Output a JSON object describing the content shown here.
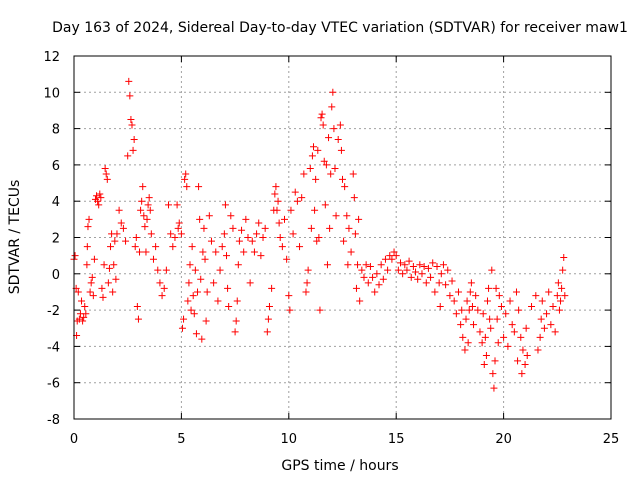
{
  "chart_data": {
    "type": "scatter",
    "title": "Day 163 of 2024, Sidereal Day-to-day VTEC variation (SDTVAR) for receiver maw1",
    "xlabel": "GPS time / hours",
    "ylabel": "SDTVAR / TECUs",
    "xlim": [
      0,
      25
    ],
    "ylim": [
      -8,
      12
    ],
    "xticks": [
      0,
      5,
      10,
      15,
      20,
      25
    ],
    "yticks": [
      -8,
      -6,
      -4,
      -2,
      0,
      2,
      4,
      6,
      8,
      10,
      12
    ],
    "grid": true,
    "marker": "+",
    "marker_color": "#ff0000",
    "series": [
      {
        "name": "maw1",
        "points": [
          [
            0.0,
            0.8
          ],
          [
            0.05,
            1.0
          ],
          [
            0.1,
            -0.8
          ],
          [
            0.12,
            -3.4
          ],
          [
            0.15,
            -2.6
          ],
          [
            0.2,
            -1.0
          ],
          [
            0.25,
            -2.5
          ],
          [
            0.3,
            -2.2
          ],
          [
            0.35,
            -1.5
          ],
          [
            0.4,
            -2.6
          ],
          [
            0.45,
            -2.4
          ],
          [
            0.5,
            -1.8
          ],
          [
            0.55,
            -2.2
          ],
          [
            0.6,
            0.5
          ],
          [
            0.62,
            1.5
          ],
          [
            0.65,
            2.6
          ],
          [
            0.7,
            3.0
          ],
          [
            0.75,
            -1.0
          ],
          [
            0.8,
            -0.5
          ],
          [
            0.85,
            -0.2
          ],
          [
            0.9,
            -1.2
          ],
          [
            0.95,
            0.8
          ],
          [
            1.0,
            4.1
          ],
          [
            1.05,
            4.3
          ],
          [
            1.1,
            4.0
          ],
          [
            1.15,
            3.8
          ],
          [
            1.2,
            4.4
          ],
          [
            1.25,
            4.2
          ],
          [
            1.3,
            -0.8
          ],
          [
            1.35,
            -1.3
          ],
          [
            1.4,
            0.5
          ],
          [
            1.45,
            5.8
          ],
          [
            1.5,
            5.5
          ],
          [
            1.55,
            5.2
          ],
          [
            1.6,
            -0.5
          ],
          [
            1.65,
            0.3
          ],
          [
            1.7,
            1.5
          ],
          [
            1.75,
            2.2
          ],
          [
            1.8,
            -1.0
          ],
          [
            1.85,
            0.5
          ],
          [
            1.9,
            1.8
          ],
          [
            1.95,
            -0.3
          ],
          [
            2.0,
            2.2
          ],
          [
            2.1,
            3.5
          ],
          [
            2.2,
            2.8
          ],
          [
            2.3,
            2.5
          ],
          [
            2.4,
            1.8
          ],
          [
            2.5,
            6.5
          ],
          [
            2.55,
            10.6
          ],
          [
            2.6,
            9.8
          ],
          [
            2.65,
            8.5
          ],
          [
            2.7,
            8.2
          ],
          [
            2.75,
            6.8
          ],
          [
            2.8,
            7.4
          ],
          [
            2.85,
            1.5
          ],
          [
            2.9,
            2.0
          ],
          [
            2.95,
            -1.8
          ],
          [
            3.0,
            -2.5
          ],
          [
            3.05,
            1.2
          ],
          [
            3.1,
            3.5
          ],
          [
            3.15,
            4.0
          ],
          [
            3.2,
            4.8
          ],
          [
            3.25,
            3.2
          ],
          [
            3.3,
            2.6
          ],
          [
            3.35,
            1.2
          ],
          [
            3.4,
            3.0
          ],
          [
            3.45,
            3.8
          ],
          [
            3.5,
            4.2
          ],
          [
            3.55,
            3.5
          ],
          [
            3.6,
            2.2
          ],
          [
            3.7,
            0.8
          ],
          [
            3.8,
            1.5
          ],
          [
            3.9,
            0.2
          ],
          [
            4.0,
            -0.5
          ],
          [
            4.1,
            -1.2
          ],
          [
            4.2,
            -0.8
          ],
          [
            4.3,
            0.2
          ],
          [
            4.4,
            3.8
          ],
          [
            4.5,
            2.2
          ],
          [
            4.6,
            1.5
          ],
          [
            4.7,
            2.0
          ],
          [
            4.8,
            3.8
          ],
          [
            4.85,
            2.5
          ],
          [
            4.9,
            2.8
          ],
          [
            5.0,
            2.2
          ],
          [
            5.05,
            -3.0
          ],
          [
            5.1,
            -2.5
          ],
          [
            5.15,
            5.2
          ],
          [
            5.2,
            5.5
          ],
          [
            5.25,
            4.8
          ],
          [
            5.3,
            -1.5
          ],
          [
            5.35,
            -0.5
          ],
          [
            5.4,
            0.5
          ],
          [
            5.45,
            -2.0
          ],
          [
            5.5,
            1.5
          ],
          [
            5.55,
            -1.2
          ],
          [
            5.6,
            -2.2
          ],
          [
            5.65,
            0.2
          ],
          [
            5.7,
            -3.3
          ],
          [
            5.75,
            -1.0
          ],
          [
            5.8,
            4.8
          ],
          [
            5.85,
            3.0
          ],
          [
            5.9,
            -0.3
          ],
          [
            5.95,
            -3.6
          ],
          [
            6.0,
            1.2
          ],
          [
            6.05,
            2.5
          ],
          [
            6.1,
            0.8
          ],
          [
            6.15,
            -2.6
          ],
          [
            6.2,
            -1.0
          ],
          [
            6.3,
            3.2
          ],
          [
            6.4,
            1.8
          ],
          [
            6.5,
            -0.5
          ],
          [
            6.6,
            1.2
          ],
          [
            6.7,
            -1.5
          ],
          [
            6.8,
            0.2
          ],
          [
            6.9,
            1.5
          ],
          [
            7.0,
            2.2
          ],
          [
            7.05,
            3.8
          ],
          [
            7.1,
            1.0
          ],
          [
            7.15,
            -0.8
          ],
          [
            7.2,
            -1.8
          ],
          [
            7.3,
            3.2
          ],
          [
            7.4,
            2.5
          ],
          [
            7.5,
            -3.2
          ],
          [
            7.55,
            -2.6
          ],
          [
            7.6,
            -1.5
          ],
          [
            7.65,
            0.5
          ],
          [
            7.7,
            1.8
          ],
          [
            7.8,
            2.4
          ],
          [
            7.9,
            1.2
          ],
          [
            8.0,
            3.0
          ],
          [
            8.1,
            2.0
          ],
          [
            8.2,
            -0.5
          ],
          [
            8.3,
            1.8
          ],
          [
            8.4,
            1.2
          ],
          [
            8.5,
            2.2
          ],
          [
            8.6,
            2.8
          ],
          [
            8.7,
            1.0
          ],
          [
            8.8,
            2.0
          ],
          [
            8.9,
            2.5
          ],
          [
            9.0,
            -3.2
          ],
          [
            9.05,
            -2.5
          ],
          [
            9.1,
            -1.8
          ],
          [
            9.2,
            -0.8
          ],
          [
            9.3,
            3.5
          ],
          [
            9.35,
            4.4
          ],
          [
            9.4,
            4.8
          ],
          [
            9.45,
            3.5
          ],
          [
            9.5,
            4.0
          ],
          [
            9.55,
            2.8
          ],
          [
            9.6,
            2.0
          ],
          [
            9.7,
            1.5
          ],
          [
            9.8,
            3.0
          ],
          [
            9.9,
            0.8
          ],
          [
            10.0,
            -1.2
          ],
          [
            10.05,
            -2.0
          ],
          [
            10.1,
            3.5
          ],
          [
            10.2,
            2.2
          ],
          [
            10.3,
            4.5
          ],
          [
            10.4,
            4.0
          ],
          [
            10.5,
            1.5
          ],
          [
            10.6,
            4.2
          ],
          [
            10.7,
            5.5
          ],
          [
            10.8,
            -1.0
          ],
          [
            10.85,
            -0.5
          ],
          [
            10.9,
            0.2
          ],
          [
            11.0,
            5.8
          ],
          [
            11.05,
            2.5
          ],
          [
            11.1,
            6.5
          ],
          [
            11.15,
            7.0
          ],
          [
            11.2,
            3.5
          ],
          [
            11.25,
            5.2
          ],
          [
            11.3,
            1.8
          ],
          [
            11.35,
            6.8
          ],
          [
            11.4,
            2.0
          ],
          [
            11.45,
            -2.0
          ],
          [
            11.5,
            8.6
          ],
          [
            11.55,
            8.8
          ],
          [
            11.6,
            8.2
          ],
          [
            11.65,
            6.2
          ],
          [
            11.7,
            3.8
          ],
          [
            11.75,
            6.0
          ],
          [
            11.8,
            0.5
          ],
          [
            11.85,
            7.5
          ],
          [
            11.9,
            2.5
          ],
          [
            11.95,
            5.5
          ],
          [
            12.0,
            9.2
          ],
          [
            12.05,
            10.0
          ],
          [
            12.1,
            8.0
          ],
          [
            12.15,
            5.8
          ],
          [
            12.2,
            3.2
          ],
          [
            12.3,
            7.4
          ],
          [
            12.4,
            8.2
          ],
          [
            12.45,
            6.8
          ],
          [
            12.5,
            5.2
          ],
          [
            12.55,
            1.8
          ],
          [
            12.6,
            4.8
          ],
          [
            12.7,
            3.2
          ],
          [
            12.75,
            0.5
          ],
          [
            12.8,
            2.5
          ],
          [
            12.9,
            1.2
          ],
          [
            13.0,
            5.5
          ],
          [
            13.05,
            4.2
          ],
          [
            13.1,
            2.2
          ],
          [
            13.15,
            -0.8
          ],
          [
            13.2,
            0.5
          ],
          [
            13.25,
            3.0
          ],
          [
            13.3,
            -1.5
          ],
          [
            13.4,
            0.2
          ],
          [
            13.5,
            -0.2
          ],
          [
            13.6,
            0.5
          ],
          [
            13.7,
            -0.5
          ],
          [
            13.8,
            0.4
          ],
          [
            13.9,
            -0.2
          ],
          [
            14.0,
            -1.0
          ],
          [
            14.1,
            0.0
          ],
          [
            14.2,
            -0.6
          ],
          [
            14.3,
            0.5
          ],
          [
            14.4,
            -0.3
          ],
          [
            14.5,
            0.8
          ],
          [
            14.6,
            0.2
          ],
          [
            14.7,
            1.0
          ],
          [
            14.8,
            0.8
          ],
          [
            14.9,
            1.2
          ],
          [
            15.0,
            1.0
          ],
          [
            15.1,
            0.2
          ],
          [
            15.2,
            0.6
          ],
          [
            15.3,
            0.0
          ],
          [
            15.4,
            0.5
          ],
          [
            15.5,
            0.2
          ],
          [
            15.6,
            0.7
          ],
          [
            15.7,
            -0.2
          ],
          [
            15.8,
            0.4
          ],
          [
            15.9,
            0.1
          ],
          [
            16.0,
            -0.3
          ],
          [
            16.1,
            0.5
          ],
          [
            16.2,
            0.0
          ],
          [
            16.3,
            0.4
          ],
          [
            16.4,
            -0.5
          ],
          [
            16.5,
            0.3
          ],
          [
            16.6,
            -0.2
          ],
          [
            16.7,
            0.6
          ],
          [
            16.8,
            -1.0
          ],
          [
            16.9,
            0.4
          ],
          [
            17.0,
            -0.5
          ],
          [
            17.05,
            -1.8
          ],
          [
            17.1,
            0.0
          ],
          [
            17.2,
            0.5
          ],
          [
            17.3,
            -0.6
          ],
          [
            17.4,
            0.2
          ],
          [
            17.5,
            -1.2
          ],
          [
            17.6,
            -0.4
          ],
          [
            17.7,
            -1.5
          ],
          [
            17.8,
            -2.2
          ],
          [
            17.9,
            -1.0
          ],
          [
            18.0,
            -2.8
          ],
          [
            18.05,
            -2.0
          ],
          [
            18.1,
            -3.5
          ],
          [
            18.2,
            -4.2
          ],
          [
            18.25,
            -2.5
          ],
          [
            18.3,
            -1.5
          ],
          [
            18.35,
            -3.8
          ],
          [
            18.4,
            -2.0
          ],
          [
            18.45,
            -1.0
          ],
          [
            18.5,
            -0.5
          ],
          [
            18.55,
            -1.8
          ],
          [
            18.6,
            -2.8
          ],
          [
            18.7,
            -1.2
          ],
          [
            18.8,
            -2.0
          ],
          [
            18.9,
            -3.2
          ],
          [
            19.0,
            -3.8
          ],
          [
            19.05,
            -2.2
          ],
          [
            19.1,
            -5.0
          ],
          [
            19.15,
            -3.5
          ],
          [
            19.2,
            -4.5
          ],
          [
            19.25,
            -1.5
          ],
          [
            19.3,
            -0.8
          ],
          [
            19.35,
            -2.5
          ],
          [
            19.4,
            -3.0
          ],
          [
            19.45,
            0.2
          ],
          [
            19.5,
            -5.5
          ],
          [
            19.55,
            -6.3
          ],
          [
            19.6,
            -4.8
          ],
          [
            19.65,
            -0.8
          ],
          [
            19.7,
            -2.5
          ],
          [
            19.75,
            -3.8
          ],
          [
            19.8,
            -1.2
          ],
          [
            19.9,
            -1.8
          ],
          [
            20.0,
            -3.5
          ],
          [
            20.1,
            -2.2
          ],
          [
            20.2,
            -4.0
          ],
          [
            20.3,
            -1.5
          ],
          [
            20.4,
            -2.8
          ],
          [
            20.5,
            -3.2
          ],
          [
            20.6,
            -1.0
          ],
          [
            20.65,
            -4.8
          ],
          [
            20.7,
            -2.0
          ],
          [
            20.8,
            -3.5
          ],
          [
            20.85,
            -5.5
          ],
          [
            20.9,
            -4.2
          ],
          [
            21.0,
            -5.0
          ],
          [
            21.05,
            -3.0
          ],
          [
            21.1,
            -4.5
          ],
          [
            21.3,
            -1.8
          ],
          [
            21.5,
            -1.2
          ],
          [
            21.6,
            -4.2
          ],
          [
            21.7,
            -3.5
          ],
          [
            21.75,
            -2.5
          ],
          [
            21.8,
            -1.5
          ],
          [
            21.9,
            -3.0
          ],
          [
            22.0,
            -2.2
          ],
          [
            22.1,
            -1.0
          ],
          [
            22.2,
            -2.8
          ],
          [
            22.3,
            -1.8
          ],
          [
            22.4,
            -3.2
          ],
          [
            22.5,
            -1.2
          ],
          [
            22.55,
            -0.5
          ],
          [
            22.6,
            -2.0
          ],
          [
            22.65,
            -1.5
          ],
          [
            22.7,
            -0.8
          ],
          [
            22.75,
            0.2
          ],
          [
            22.8,
            0.9
          ],
          [
            22.85,
            -1.2
          ]
        ]
      }
    ]
  }
}
